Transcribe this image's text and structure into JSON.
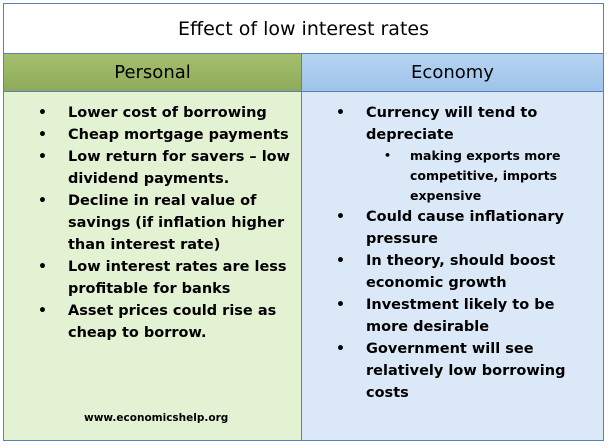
{
  "title": "Effect of low interest rates",
  "columns": {
    "personal": {
      "header": "Personal",
      "items": [
        "Lower cost of borrowing",
        "Cheap mortgage payments",
        "Low return for savers – low dividend payments.",
        "Decline in real value of savings (if inflation higher than interest rate)",
        "Low interest rates are less profitable for banks",
        "Asset prices could rise as cheap to borrow."
      ]
    },
    "economy": {
      "header": "Economy",
      "items": [
        "Currency will tend to depreciate",
        "Could cause inflationary pressure",
        "In theory, should boost economic growth",
        "Investment likely to be more desirable",
        "Government will see relatively low borrowing costs"
      ],
      "sub_items": [
        "making exports more competitive, imports expensive"
      ]
    }
  },
  "footer": "www.economicshelp.org",
  "colors": {
    "border": "#5b7fb8",
    "personal_header": "#9bb765",
    "personal_body": "#e4f2d4",
    "economy_header": "#acceef",
    "economy_body": "#dbe8f7"
  }
}
